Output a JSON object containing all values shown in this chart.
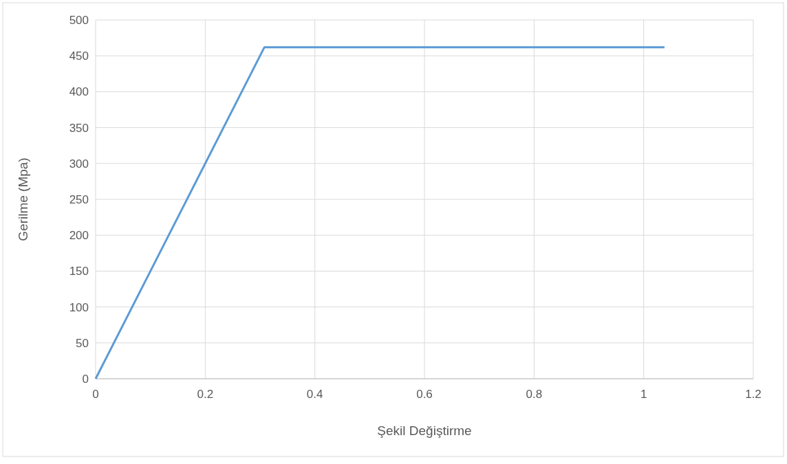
{
  "chart_data": {
    "type": "line",
    "xlabel": "Şekil Değiştirme",
    "ylabel": "Gerilme (Mpa)",
    "x": [
      0,
      0.308,
      1.038
    ],
    "values": [
      0,
      462,
      462
    ],
    "color": "#5b9bd5",
    "xlim": [
      0,
      1.2
    ],
    "xticks": [
      0,
      0.2,
      0.4,
      0.6,
      0.8,
      1,
      1.2
    ],
    "ylim": [
      0,
      500
    ],
    "yticks": [
      0,
      50,
      100,
      150,
      200,
      250,
      300,
      350,
      400,
      450,
      500
    ],
    "grid": true,
    "marker": "none",
    "line_style": "solid"
  }
}
